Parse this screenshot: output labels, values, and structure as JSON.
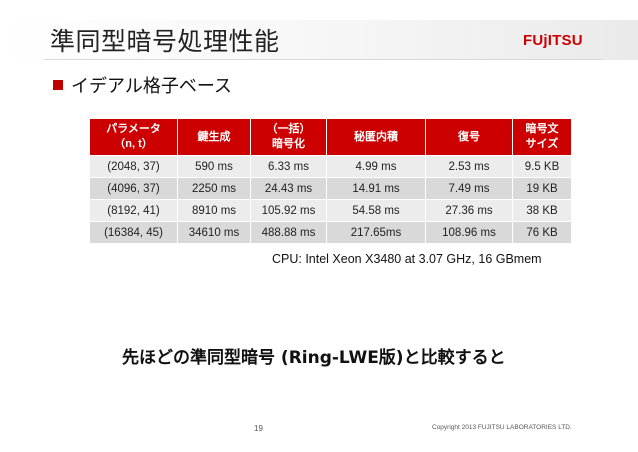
{
  "slide": {
    "title": "準同型暗号処理性能",
    "bullet": "イデアル格子ベース",
    "cpu_note": "CPU: Intel Xeon X3480 at 3.07 GHz, 16 GBmem",
    "compare_text": "先ほどの準同型暗号 (Ring-LWE版)と比較すると",
    "page_number": "19",
    "copyright": "Copyright 2013 FUJITSU LABORATORIES LTD."
  },
  "logo": {
    "text_prefix": "FUj",
    "text_suffix": "ITSU",
    "accent_color": "#cc0000"
  },
  "table": {
    "headers": [
      {
        "line1": "パラメータ",
        "line2": "（n, t）"
      },
      {
        "line1": "鍵生成",
        "line2": ""
      },
      {
        "line1": "（一括）",
        "line2": "暗号化"
      },
      {
        "line1": "秘匿内積",
        "line2": ""
      },
      {
        "line1": "復号",
        "line2": ""
      },
      {
        "line1": "暗号文",
        "line2": "サイズ"
      }
    ],
    "rows": [
      [
        "(2048, 37)",
        "590 ms",
        "6.33 ms",
        "4.99 ms",
        "2.53 ms",
        "9.5 KB"
      ],
      [
        "(4096, 37)",
        "2250 ms",
        "24.43 ms",
        "14.91 ms",
        "7.49 ms",
        "19 KB"
      ],
      [
        "(8192, 41)",
        "8910 ms",
        "105.92 ms",
        "54.58 ms",
        "27.36 ms",
        "38 KB"
      ],
      [
        "(16384, 45)",
        "34610 ms",
        "488.88 ms",
        "217.65ms",
        "108.96 ms",
        "76 KB"
      ]
    ]
  }
}
